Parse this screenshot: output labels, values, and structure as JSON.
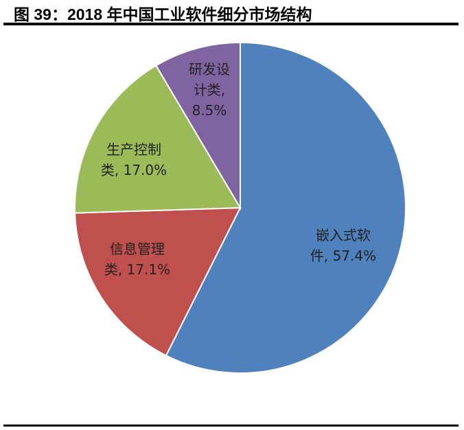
{
  "title": "图 39：2018 年中国工业软件细分市场结构",
  "chart_data": {
    "type": "pie",
    "title": "图 39：2018 年中国工业软件细分市场结构",
    "start_angle": "12 o'clock, clockwise",
    "slices": [
      {
        "label": "嵌入式软件",
        "value": 57.4,
        "label_lines": [
          "嵌入式软",
          "件, 57.4%"
        ],
        "color": "#4F81BD"
      },
      {
        "label": "信息管理类",
        "value": 17.1,
        "label_lines": [
          "信息管理",
          "类, 17.1%"
        ],
        "color": "#C0504D"
      },
      {
        "label": "生产控制类",
        "value": 17.0,
        "label_lines": [
          "生产控制",
          "类, 17.0%"
        ],
        "color": "#9BBB59"
      },
      {
        "label": "研发设计类",
        "value": 8.5,
        "label_lines": [
          "研发设",
          "计类,",
          "8.5%"
        ],
        "color": "#8064A2"
      }
    ]
  }
}
